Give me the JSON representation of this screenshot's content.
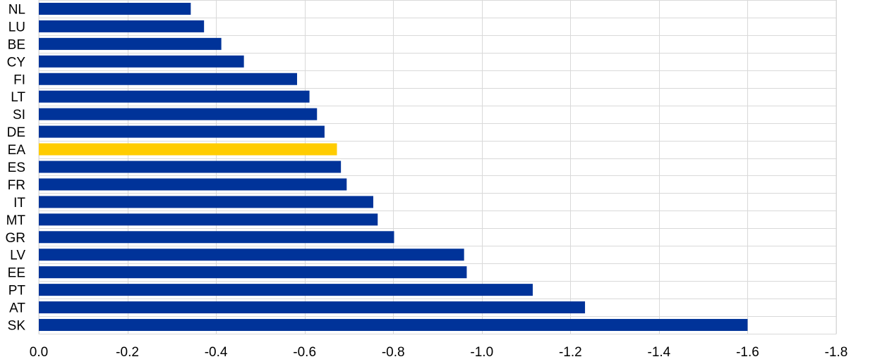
{
  "chart_data": {
    "type": "bar",
    "orientation": "horizontal",
    "categories": [
      "NL",
      "LU",
      "BE",
      "CY",
      "FI",
      "LT",
      "SI",
      "DE",
      "EA",
      "ES",
      "FR",
      "IT",
      "MT",
      "GR",
      "LV",
      "EE",
      "PT",
      "AT",
      "SK"
    ],
    "values": [
      -0.343,
      -0.373,
      -0.412,
      -0.463,
      -0.583,
      -0.611,
      -0.628,
      -0.645,
      -0.673,
      -0.682,
      -0.695,
      -0.755,
      -0.765,
      -0.802,
      -0.96,
      -0.966,
      -1.115,
      -1.233,
      -1.6
    ],
    "xlim": [
      0.0,
      -1.8
    ],
    "x_ticks": [
      "0.0",
      "-0.2",
      "-0.4",
      "-0.6",
      "-0.8",
      "-1.0",
      "-1.2",
      "-1.4",
      "-1.6",
      "-1.8"
    ],
    "x_tick_values": [
      0,
      -0.2,
      -0.4,
      -0.6,
      -0.8,
      -1.0,
      -1.2,
      -1.4,
      -1.6,
      -1.8
    ],
    "grid": true,
    "title": "",
    "xlabel": "",
    "ylabel": "",
    "colors": {
      "default": "#003399",
      "highlight": "#ffcc00"
    },
    "highlight_category": "EA"
  }
}
